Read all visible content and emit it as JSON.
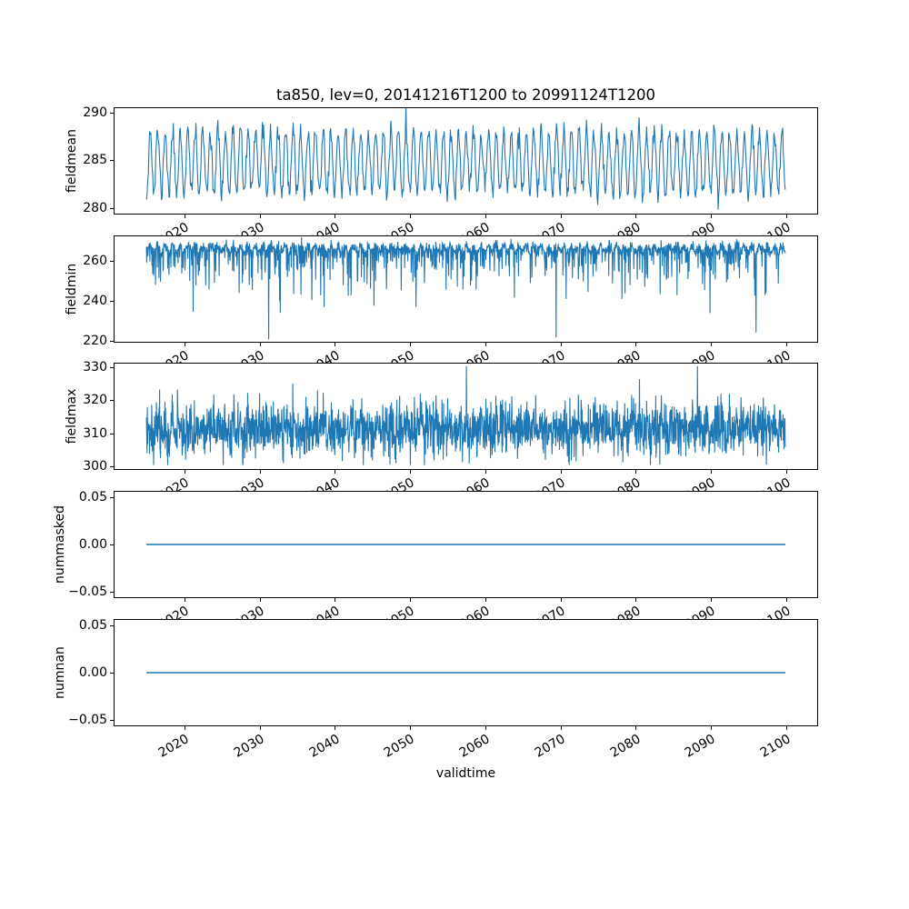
{
  "figure": {
    "title": "ta850, lev=0, 20141216T1200 to 20991124T1200",
    "xlabel": "validtime",
    "background_color": "#ffffff",
    "line_color": "#1f77b4",
    "axis_color": "#000000",
    "text_color": "#000000"
  },
  "chart_data": {
    "type": "line",
    "title": "ta850, lev=0, 20141216T1200 to 20991124T1200",
    "xlabel": "validtime",
    "grid": false,
    "legend": "none",
    "x_range": [
      2014.96,
      2099.9
    ],
    "xlim": [
      2010.6,
      2104.25
    ],
    "x_ticks": [
      2020,
      2030,
      2040,
      2050,
      2060,
      2070,
      2080,
      2090,
      2100
    ],
    "x_tick_labels": [
      "2020",
      "2030",
      "2040",
      "2050",
      "2060",
      "2070",
      "2080",
      "2090",
      "2100"
    ],
    "x_tick_rotation_deg": 30,
    "subplots": [
      {
        "ylabel": "fieldmean",
        "ylim": [
          279.3,
          290.6
        ],
        "ytick_values": [
          280,
          285,
          290
        ],
        "ytick_labels": [
          "280",
          "285",
          "290"
        ],
        "series": {
          "name": "fieldmean",
          "pattern": "seasonal_noise",
          "seed": 11,
          "points_per_year": 12,
          "base": 284.8,
          "seasonal_amplitude": 3.3,
          "phase": 0.21,
          "noise_sd": 0.55,
          "observed_min": 279.8,
          "observed_max": 290.1,
          "observed_mean": 284.8,
          "anomalies": [
            {
              "t": 2049.46,
              "dv": 2.0
            },
            {
              "t": 2090.96,
              "dv": -1.5
            }
          ]
        }
      },
      {
        "ylabel": "fieldmin",
        "ylim": [
          219.0,
          273.0
        ],
        "ytick_values": [
          220,
          240,
          260
        ],
        "ytick_labels": [
          "220",
          "240",
          "260"
        ],
        "series": {
          "name": "fieldmin",
          "pattern": "seasonal_noise_downspikes",
          "seed": 23,
          "points_per_year": 24,
          "base": 266.3,
          "seasonal_amplitude": 1.6,
          "phase": 0.21,
          "noise_sd": 1.3,
          "spike_prob": 0.3,
          "spike_scale": 6.5,
          "spike_cap": 30,
          "observed_min": 220.7,
          "observed_max": 270.4,
          "observed_mean": 259.0,
          "anomalies": [
            {
              "t": 2031.2,
              "dv": -44
            },
            {
              "t": 2069.4,
              "dv": -40
            },
            {
              "t": 2096.0,
              "dv": -41
            }
          ]
        }
      },
      {
        "ylabel": "fieldmax",
        "ylim": [
          298.8,
          331.5
        ],
        "ytick_values": [
          300,
          310,
          320,
          330
        ],
        "ytick_labels": [
          "300",
          "310",
          "320",
          "330"
        ],
        "series": {
          "name": "fieldmax",
          "pattern": "noise_band",
          "seed": 37,
          "points_per_year": 24,
          "base": 311.3,
          "seasonal_amplitude": 1.2,
          "phase": 0.21,
          "noise_sd": 4.1,
          "clamp": [
            300.4,
            330.3
          ],
          "observed_min": 300.4,
          "observed_max": 330.2,
          "observed_mean": 311.3,
          "anomalies": [
            {
              "t": 2057.5,
              "dv": 16
            },
            {
              "t": 2088.2,
              "dv": 15
            }
          ]
        }
      },
      {
        "ylabel": "nummasked",
        "ylim": [
          -0.0567,
          0.0567
        ],
        "ytick_values": [
          -0.05,
          0,
          0.05
        ],
        "ytick_labels": [
          "−0.05",
          "0.00",
          "0.05"
        ],
        "series": {
          "name": "nummasked",
          "pattern": "constant",
          "constant": 0,
          "observed_min": 0,
          "observed_max": 0
        }
      },
      {
        "ylabel": "numnan",
        "ylim": [
          -0.0567,
          0.0567
        ],
        "ytick_values": [
          -0.05,
          0,
          0.05
        ],
        "ytick_labels": [
          "−0.05",
          "0.00",
          "0.05"
        ],
        "series": {
          "name": "numnan",
          "pattern": "constant",
          "constant": 0,
          "observed_min": 0,
          "observed_max": 0
        }
      }
    ]
  }
}
